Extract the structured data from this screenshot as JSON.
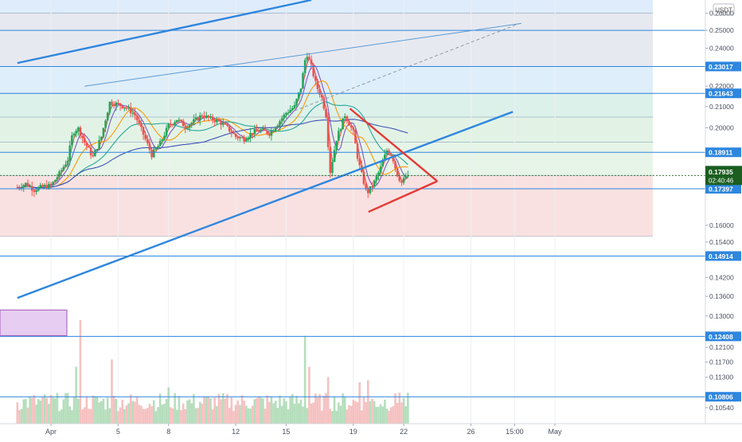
{
  "chart_data": {
    "type": "candlestick",
    "symbol_currency": "USDT",
    "y_axis": {
      "scale": "log",
      "range": [
        0.1016,
        0.268
      ],
      "ticks": [
        "0.26000",
        "0.25000",
        "0.24000",
        "0.22000",
        "0.21000",
        "0.20000",
        "0.16000",
        "0.15400",
        "0.14200",
        "0.13600",
        "0.13000",
        "0.12100",
        "0.11700",
        "0.11300",
        "0.10800",
        "0.10540"
      ],
      "badges": [
        {
          "label": "0.23017",
          "value": 0.23017
        },
        {
          "label": "0.21643",
          "value": 0.21643
        },
        {
          "label": "0.18911",
          "value": 0.18911
        },
        {
          "label": "0.17397",
          "value": 0.17397
        },
        {
          "label": "0.14914",
          "value": 0.14914
        },
        {
          "label": "0.12408",
          "value": 0.12408
        },
        {
          "label": "0.10806",
          "value": 0.10806
        }
      ],
      "last_price": {
        "label": "0.17935",
        "countdown": "02:40:46",
        "value": 0.17935,
        "color": "#1b5e20"
      }
    },
    "x_axis": {
      "ticks": [
        {
          "label": "Apr",
          "day": 1
        },
        {
          "label": "5",
          "day": 5
        },
        {
          "label": "8",
          "day": 8
        },
        {
          "label": "12",
          "day": 12
        },
        {
          "label": "15",
          "day": 15
        },
        {
          "label": "19",
          "day": 19
        },
        {
          "label": "22",
          "day": 22
        },
        {
          "label": "26",
          "day": 26
        },
        {
          "label": "15:00",
          "day": 28.6
        },
        {
          "label": "May",
          "day": 31
        }
      ]
    },
    "price_path": [
      {
        "day": -1.0,
        "price": 0.1745
      },
      {
        "day": -0.5,
        "price": 0.176
      },
      {
        "day": 0.0,
        "price": 0.1735
      },
      {
        "day": 0.5,
        "price": 0.1748
      },
      {
        "day": 1.0,
        "price": 0.1752
      },
      {
        "day": 1.5,
        "price": 0.18
      },
      {
        "day": 2.0,
        "price": 0.186
      },
      {
        "day": 2.3,
        "price": 0.198
      },
      {
        "day": 2.6,
        "price": 0.2
      },
      {
        "day": 3.0,
        "price": 0.1935
      },
      {
        "day": 3.5,
        "price": 0.187
      },
      {
        "day": 4.0,
        "price": 0.196
      },
      {
        "day": 4.5,
        "price": 0.212
      },
      {
        "day": 5.0,
        "price": 0.211
      },
      {
        "day": 5.5,
        "price": 0.2095
      },
      {
        "day": 6.0,
        "price": 0.206
      },
      {
        "day": 6.5,
        "price": 0.197
      },
      {
        "day": 7.0,
        "price": 0.188
      },
      {
        "day": 7.5,
        "price": 0.193
      },
      {
        "day": 8.0,
        "price": 0.201
      },
      {
        "day": 8.5,
        "price": 0.204
      },
      {
        "day": 9.0,
        "price": 0.2005
      },
      {
        "day": 9.5,
        "price": 0.203
      },
      {
        "day": 10.0,
        "price": 0.206
      },
      {
        "day": 10.5,
        "price": 0.204
      },
      {
        "day": 11.0,
        "price": 0.203
      },
      {
        "day": 11.5,
        "price": 0.2
      },
      {
        "day": 12.0,
        "price": 0.196
      },
      {
        "day": 12.5,
        "price": 0.195
      },
      {
        "day": 13.0,
        "price": 0.198
      },
      {
        "day": 13.5,
        "price": 0.199
      },
      {
        "day": 14.0,
        "price": 0.1975
      },
      {
        "day": 14.5,
        "price": 0.202
      },
      {
        "day": 15.0,
        "price": 0.207
      },
      {
        "day": 15.5,
        "price": 0.21
      },
      {
        "day": 15.9,
        "price": 0.22
      },
      {
        "day": 16.2,
        "price": 0.238
      },
      {
        "day": 16.5,
        "price": 0.23
      },
      {
        "day": 16.8,
        "price": 0.22
      },
      {
        "day": 17.1,
        "price": 0.215
      },
      {
        "day": 17.4,
        "price": 0.205
      },
      {
        "day": 17.6,
        "price": 0.18
      },
      {
        "day": 18.0,
        "price": 0.195
      },
      {
        "day": 18.5,
        "price": 0.206
      },
      {
        "day": 19.0,
        "price": 0.198
      },
      {
        "day": 19.3,
        "price": 0.185
      },
      {
        "day": 19.8,
        "price": 0.172
      },
      {
        "day": 20.2,
        "price": 0.176
      },
      {
        "day": 20.6,
        "price": 0.182
      },
      {
        "day": 21.0,
        "price": 0.19
      },
      {
        "day": 21.3,
        "price": 0.188
      },
      {
        "day": 21.6,
        "price": 0.18
      },
      {
        "day": 21.9,
        "price": 0.176
      },
      {
        "day": 22.1,
        "price": 0.179
      },
      {
        "day": 22.3,
        "price": 0.1794
      }
    ],
    "candle_start_day": -1.0,
    "candle_step_day": 0.125,
    "moving_averages": [
      {
        "color": "#ef5350",
        "period": 3
      },
      {
        "color": "#7e57c2",
        "period": 6
      },
      {
        "color": "#ff9800",
        "period": 14
      },
      {
        "color": "#26a69a",
        "period": 30
      },
      {
        "color": "#3f51b5",
        "period": 90
      }
    ],
    "volume_spikes": [
      {
        "day": 2.5,
        "rel": 0.55
      },
      {
        "day": 2.8,
        "rel": 1.0
      },
      {
        "day": 4.6,
        "rel": 0.62
      },
      {
        "day": 8.0,
        "rel": 0.35
      },
      {
        "day": 16.1,
        "rel": 0.85
      },
      {
        "day": 16.4,
        "rel": 0.55
      },
      {
        "day": 17.5,
        "rel": 0.45
      },
      {
        "day": 19.4,
        "rel": 0.4
      },
      {
        "day": 19.9,
        "rel": 0.42
      },
      {
        "day": 21.7,
        "rel": 0.3
      }
    ],
    "horizontal_levels": [
      0.25,
      0.23017,
      0.21643,
      0.18911,
      0.17397,
      0.14914,
      0.12408,
      0.10806
    ],
    "fib_levels": [
      0.26,
      0.23017,
      0.21643,
      0.205,
      0.1935,
      0.17935,
      0.156
    ],
    "channel_lines": [
      {
        "from": {
          "day": -1.0,
          "price": 0.232
        },
        "to": {
          "day": 16.5,
          "price": 0.268
        },
        "color": "#2e86de"
      },
      {
        "from": {
          "day": -1.0,
          "price": 0.1355
        },
        "to": {
          "day": 28.5,
          "price": 0.2075
        },
        "color": "#2e86de"
      },
      {
        "from": {
          "day": 3.0,
          "price": 0.22
        },
        "to": {
          "day": 29.0,
          "price": 0.254
        },
        "color": "#5a9bd5"
      }
    ],
    "triangle": {
      "color": "#e53935",
      "upper": {
        "from": {
          "day": 18.8,
          "price": 0.209
        },
        "to": {
          "day": 24.0,
          "price": 0.177
        }
      },
      "lower": {
        "from": {
          "day": 19.9,
          "price": 0.165
        },
        "to": {
          "day": 24.0,
          "price": 0.177
        }
      }
    }
  }
}
